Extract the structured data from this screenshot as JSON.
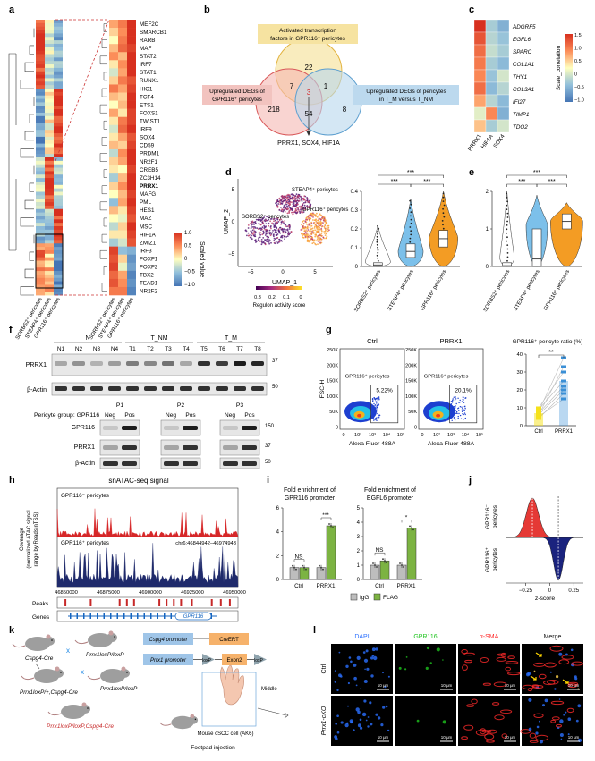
{
  "panels": {
    "a": {
      "letter": "a",
      "genes": [
        "MEF2C",
        "SMARCB1",
        "RARB",
        "MAF",
        "STAT2",
        "IRF7",
        "STAT1",
        "RUNX1",
        "HIC1",
        "TCF4",
        "ETS1",
        "FOXS1",
        "TWIST1",
        "IRF9",
        "SOX4",
        "CD59",
        "PRDM1",
        "NR2F1",
        "CREB5",
        "ZC3H14",
        "PRRX1",
        "MAFG",
        "PML",
        "HES1",
        "MAZ",
        "MSC",
        "HIF1A",
        "ZMIZ1",
        "IRF3",
        "FOXF1",
        "FOXF2",
        "TBX2",
        "TEAD1",
        "NR2F2"
      ],
      "columns": [
        "SORBS2+ pericytes",
        "STEAP4+ pericytes",
        "GPR116+ pericytes"
      ],
      "col_labels": [
        "SORBS2⁺ pericytes",
        "STEAP4⁺ pericytes",
        "GPR116⁺ pericytes"
      ],
      "legend_title": "Scaled value",
      "legend_ticks": [
        "1.0",
        "0.5",
        "0",
        "−0.5",
        "−1.0"
      ],
      "highlight": "PRRX1"
    },
    "b": {
      "letter": "b",
      "top_label": "Activated transcription factors in GPR116⁺ pericytes",
      "left_label": "Upregulated DEGs of GPR116⁺ pericytes",
      "right_label": "Upregulated DEGs of pericytes in T_M versus T_NM",
      "counts": {
        "top_only": "22",
        "left_only": "218",
        "right_only": "8",
        "top_left": "7",
        "top_right": "1",
        "left_right": "54",
        "center": "3"
      },
      "result": "PRRX1, SOX4, HIF1A"
    },
    "c": {
      "letter": "c",
      "rows": [
        "ADGRF5",
        "EGFL6",
        "SPARC",
        "COL1A1",
        "THY1",
        "COL3A1",
        "IFI27",
        "TIMP1",
        "TDO2"
      ],
      "cols": [
        "PRRX1",
        "HIF1A",
        "SOX4"
      ],
      "legend_title": "Scale_correlation",
      "legend_ticks": [
        "1.5",
        "1.0",
        "0.5",
        "0",
        "−0.5",
        "−1.0"
      ]
    },
    "d": {
      "letter": "d",
      "umap_xlabel": "UMAP_1",
      "umap_ylabel": "UMAP_2",
      "umap_xticks": [
        "−5",
        "0",
        "5"
      ],
      "umap_yticks": [
        "5",
        "0",
        "−5"
      ],
      "cluster_labels": [
        "STEAP4⁺ pericytes",
        "SORBS2⁺ pericytes",
        "GPR116⁺ pericytes"
      ],
      "colorbar_ticks": [
        "0.3",
        "0.2",
        "0.1",
        "0"
      ],
      "colorbar_title": "Regulon activity score",
      "violin_yticks": [
        "0.4",
        "0.3",
        "0.2",
        "0.1",
        "0"
      ],
      "groups": [
        "SORBS2⁺ pericytes",
        "STEAP4⁺ pericytes",
        "GPR116⁺ pericytes"
      ],
      "sig": [
        "***",
        "***",
        "***"
      ]
    },
    "e": {
      "letter": "e",
      "yticks": [
        "2",
        "1",
        "0"
      ],
      "groups": [
        "SORBS2⁺ pericytes",
        "STEAP4⁺ pericytes",
        "GPR116⁺ pericytes"
      ],
      "sig": [
        "***",
        "***",
        "***"
      ]
    },
    "f": {
      "letter": "f",
      "group_N": "N",
      "group_TNM": "T_NM",
      "group_TM": "T_M",
      "lanes": [
        "N1",
        "N2",
        "N3",
        "N4",
        "T1",
        "T2",
        "T3",
        "T4",
        "T5",
        "T6",
        "T7",
        "T8"
      ],
      "blot1": "PRRX1",
      "blot2": "β-Actin",
      "mw_top": [
        "37",
        "50"
      ],
      "group_row_label": "Pericyte group: GPR116",
      "patients": [
        "P1",
        "P2",
        "P3"
      ],
      "negpos": [
        "Neg",
        "Pos"
      ],
      "blots_bottom": [
        "GPR116",
        "PRRX1",
        "β-Actin"
      ],
      "mw_bottom": [
        "150",
        "37",
        "50"
      ]
    },
    "g": {
      "letter": "g",
      "ctrl_title": "Ctrl",
      "prrx_title": "PRRX1",
      "ylabel": "FSC-H",
      "xlabel": "Alexa Fluor 488A",
      "yticks": [
        "250K",
        "200K",
        "150K",
        "100K",
        "50K",
        "0"
      ],
      "xticks": [
        "0",
        "10²",
        "10³",
        "10⁴",
        "10⁵"
      ],
      "gate_label": "GPR116⁺ pericytes",
      "ctrl_pct": "5.22%",
      "prrx_pct": "20.1%",
      "ratio_title": "GPR116⁺ pericyte ratio (%)",
      "ratio_yticks": [
        "40",
        "30",
        "20",
        "10",
        "0"
      ],
      "ratio_groups": [
        "Ctrl",
        "PRRX1"
      ],
      "ratio_sig": "**",
      "ctrl_color": "#f5e11a",
      "prrx_color": "#3a8fd6"
    },
    "h": {
      "letter": "h",
      "title": "snATAC-seq signal",
      "ylabel_line1": "Coverage",
      "ylabel_line2": "(normalized ATAC signal",
      "ylabel_line3": "range by ReadsInTSS)",
      "track1": "GPR116⁻ pericytes",
      "track2": "GPR116⁺ pericytes",
      "region": "chr6:46844942–46974943",
      "xticks": [
        "46850000",
        "46875000",
        "46900000",
        "46925000",
        "46950000"
      ],
      "peaks_label": "Peaks",
      "genes_label": "Genes",
      "gene_name": "GPR116",
      "track1_color": "#d62728",
      "track2_color": "#1f2a6b"
    },
    "i": {
      "letter": "i",
      "title1_line1": "Fold enrichment of",
      "title1_line2": "GPR116 promoter",
      "title2_line1": "Fold enrichment of",
      "title2_line2": "EGFL6 promoter",
      "yticks1": [
        "6",
        "4",
        "2",
        "0"
      ],
      "yticks2": [
        "5",
        "4",
        "3",
        "2",
        "1",
        "0"
      ],
      "groups": [
        "Ctrl",
        "PRRX1"
      ],
      "sig1": [
        "NS",
        "***"
      ],
      "sig2": [
        "NS",
        "*"
      ],
      "legend": [
        "IgG",
        "FLAG"
      ],
      "igg_color": "#bdbdbd",
      "flag_color": "#7cb342",
      "chart_data": [
        {
          "type": "bar",
          "categories": [
            "Ctrl",
            "PRRX1"
          ],
          "series": [
            {
              "name": "IgG",
              "values": [
                1.0,
                1.0
              ]
            },
            {
              "name": "FLAG",
              "values": [
                1.0,
                4.5
              ]
            }
          ],
          "ylim": [
            0,
            6
          ]
        },
        {
          "type": "bar",
          "categories": [
            "Ctrl",
            "PRRX1"
          ],
          "series": [
            {
              "name": "IgG",
              "values": [
                1.0,
                1.0
              ]
            },
            {
              "name": "FLAG",
              "values": [
                1.3,
                3.6
              ]
            }
          ],
          "ylim": [
            0,
            5
          ]
        }
      ]
    },
    "j": {
      "letter": "j",
      "top_label_line1": "GPR116⁻",
      "top_label_line2": "pericytes",
      "bottom_label_line1": "GPR116⁺",
      "bottom_label_line2": "pericytes",
      "xlabel": "z-score",
      "xticks": [
        "−0.25",
        "0",
        "0.25"
      ],
      "top_color": "#e53935",
      "bottom_color": "#1a237e"
    },
    "k": {
      "letter": "k",
      "mouse1": "Cspg4-Cre",
      "mouse2": "Prrx1loxP/loxP",
      "f1": "Prrx1loxP/+,Cspg4-Cre",
      "f1b": "Prrx1loxP/loxP",
      "final": "Prrx1loxP/loxP,Cspg4-Cre",
      "x_symbol": "x",
      "construct1_a": "Cspg4 promoter",
      "construct1_b": "CreERT",
      "construct2_a": "Prrx1 promoter",
      "construct2_b": "loxP",
      "construct2_c": "Exon2",
      "construct2_d": "loxP",
      "injection": "Footpad injection",
      "cells": "Mouse cSCC cell (AK6)",
      "site": "Middle"
    },
    "l": {
      "letter": "l",
      "channels": [
        "DAPI",
        "GPR116",
        "α-SMA",
        "Merge"
      ],
      "rows": [
        "Ctrl",
        "Prrx1-cKO"
      ],
      "scale": "10 μm",
      "dapi_color": "#2a6fff",
      "gpr_color": "#1ec41e",
      "sma_color": "#ff2a2a"
    }
  }
}
